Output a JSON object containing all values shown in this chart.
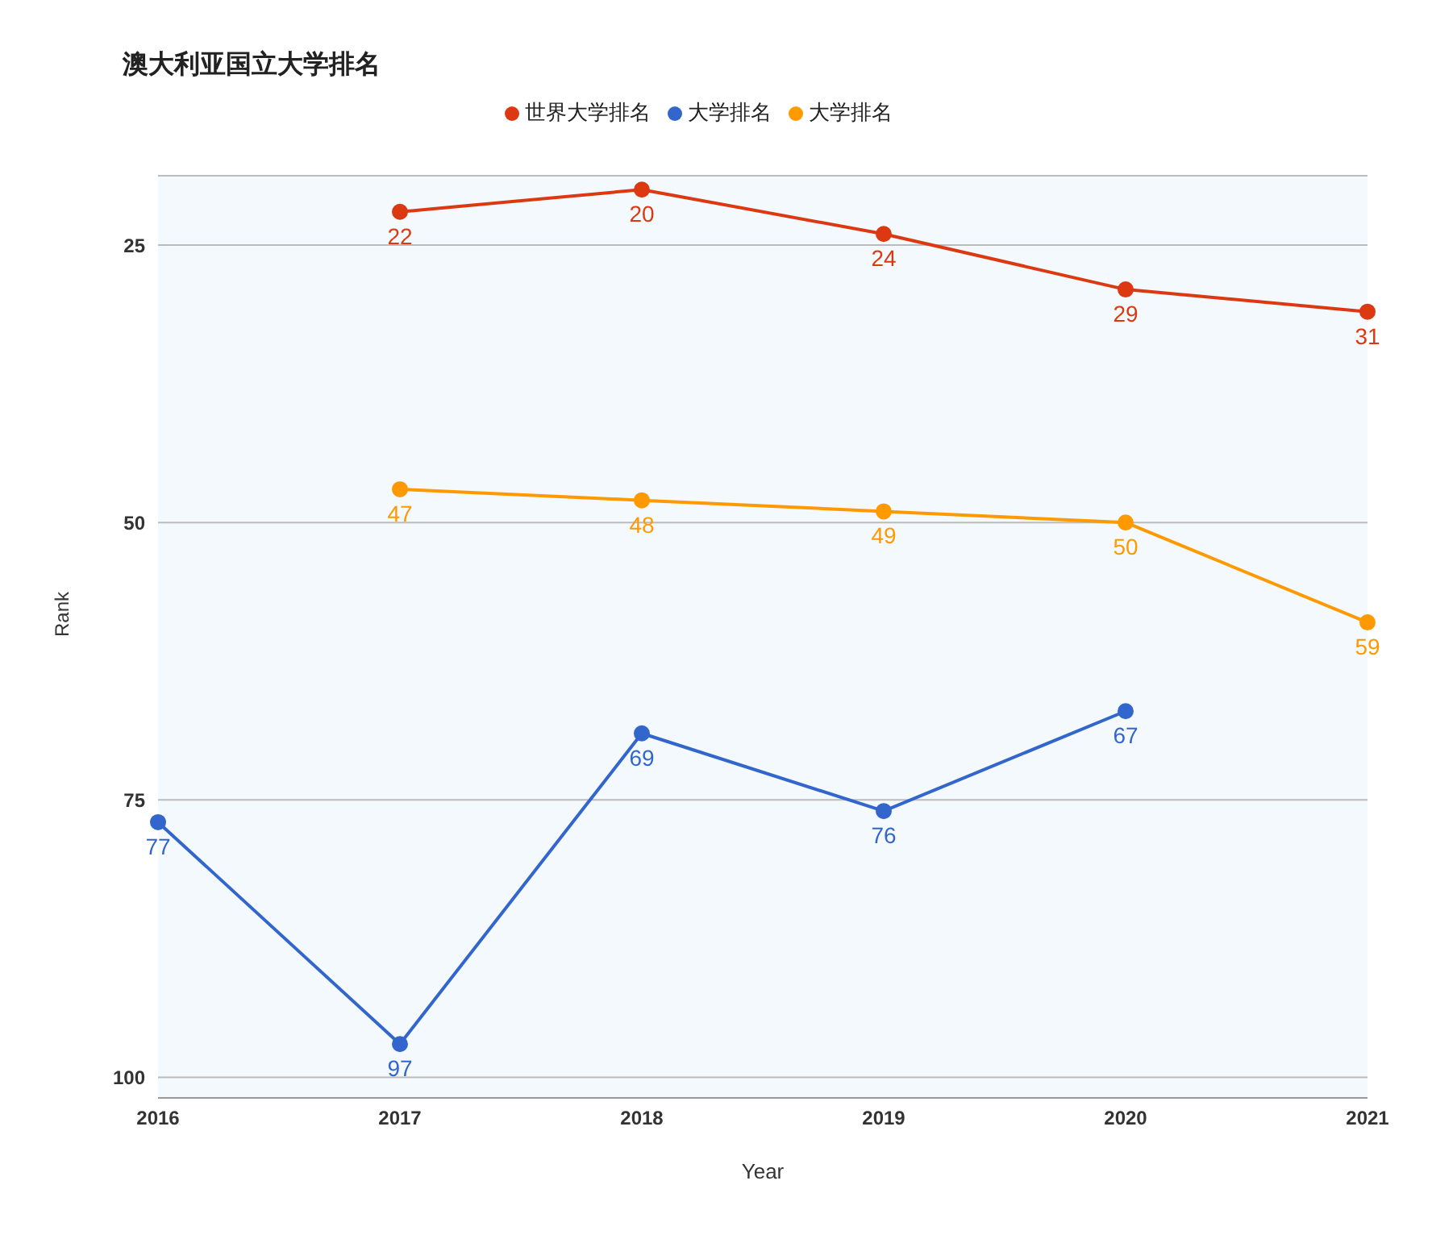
{
  "chart_data": {
    "type": "line",
    "title": "澳大利亚国立大学排名",
    "xlabel": "Year",
    "ylabel": "Rank",
    "categories": [
      "2016",
      "2017",
      "2018",
      "2019",
      "2020",
      "2021"
    ],
    "series": [
      {
        "name": "大学排名",
        "color": "#3366cc",
        "values": [
          77,
          97,
          69,
          76,
          67,
          null
        ]
      },
      {
        "name": "世界大学排名",
        "color": "#dc3912",
        "values": [
          null,
          22,
          20,
          24,
          29,
          31
        ]
      },
      {
        "name": "大学排名",
        "color": "#ff9900",
        "values": [
          null,
          47,
          48,
          49,
          50,
          59
        ]
      }
    ],
    "ylim": [
      101.85,
      18.75
    ],
    "yticks": [
      25,
      50,
      75,
      100
    ],
    "grid": "y",
    "legend": "top",
    "marker": "circle",
    "line_style": "solid",
    "data_labels": true
  }
}
